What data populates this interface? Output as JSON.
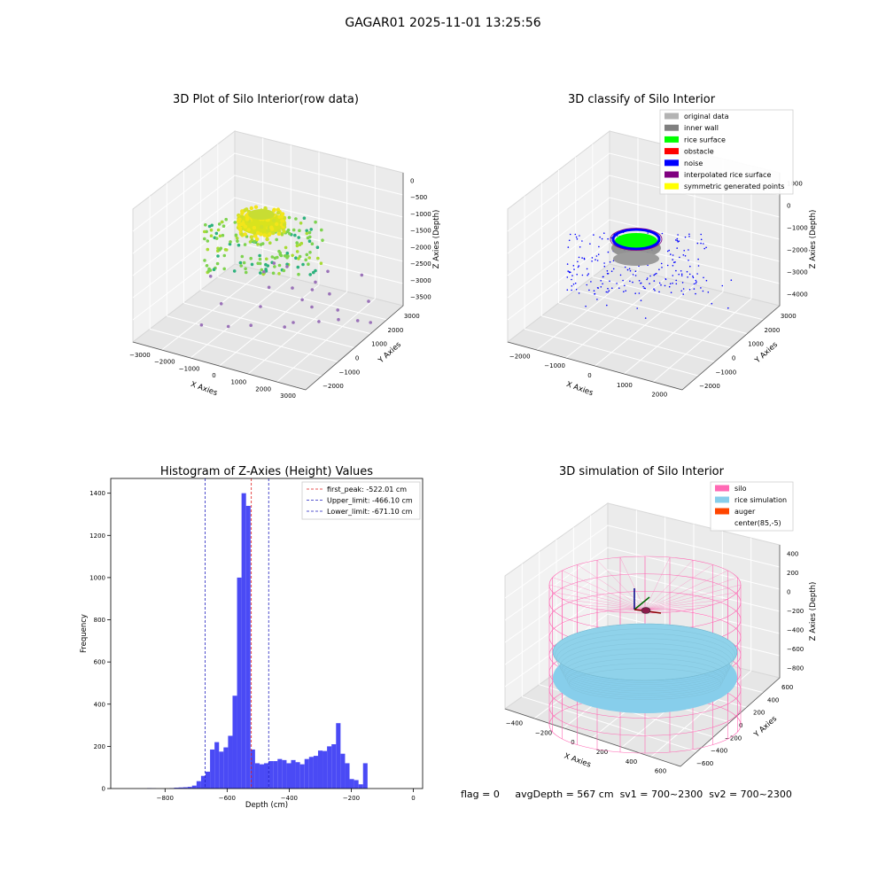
{
  "figure": {
    "suptitle": "GAGAR01 2025-11-01 13:25:56",
    "status_line": {
      "flag": "flag = 0",
      "avg_depth": "avgDepth = 567 cm",
      "sv1": "sv1 = 700~2300",
      "sv2": "sv2 = 700~2300"
    }
  },
  "chart_data": [
    {
      "type": "scatter",
      "projection": "3d",
      "title": "3D Plot of Silo Interior(row data)",
      "xlabel": "X Axies",
      "ylabel": "Y Axies",
      "zlabel": "Z Axies (Depth)",
      "xticks": [
        "−3000",
        "−2000",
        "−1000",
        "0",
        "1000",
        "2000",
        "3000"
      ],
      "yticks": [
        "−2000",
        "−1000",
        "0",
        "1000",
        "2000",
        "3000"
      ],
      "zticks": [
        "0",
        "−500",
        "−1000",
        "−1500",
        "−2000",
        "−2500",
        "−3000",
        "−3500"
      ],
      "xlim": [
        -3000,
        3000
      ],
      "ylim": [
        -2000,
        3000
      ],
      "zlim": [
        -3500,
        0
      ],
      "colormap": "viridis",
      "grid": true
    },
    {
      "type": "scatter",
      "projection": "3d",
      "title": "3D classify of Silo Interior",
      "xlabel": "X Axies",
      "ylabel": "Y Axies",
      "zlabel": "Z Axies (Depth)",
      "xticks": [
        "−2000",
        "−1000",
        "0",
        "1000",
        "2000"
      ],
      "yticks": [
        "−2000",
        "−1000",
        "0",
        "1000",
        "2000",
        "3000"
      ],
      "zticks": [
        "1000",
        "0",
        "−1000",
        "−2000",
        "−3000",
        "−4000"
      ],
      "xlim": [
        -2000,
        2000
      ],
      "ylim": [
        -2000,
        3000
      ],
      "zlim": [
        -4000,
        1000
      ],
      "legend_position": "top-right",
      "legend": [
        {
          "label": "original data",
          "color": "#b3b3b3"
        },
        {
          "label": "inner wall",
          "color": "#808080"
        },
        {
          "label": "rice surface",
          "color": "#00ff00"
        },
        {
          "label": "obstacle",
          "color": "#ff0000"
        },
        {
          "label": "noise",
          "color": "#0000ff"
        },
        {
          "label": "interpolated rice surface",
          "color": "#800080"
        },
        {
          "label": "symmetric generated points",
          "color": "#ffff00"
        }
      ],
      "grid": true
    },
    {
      "type": "bar",
      "subtype": "histogram",
      "title": "Histogram of Z-Axies (Height) Values",
      "xlabel": "Depth (cm)",
      "ylabel": "Frequency",
      "xlim": [
        -975,
        30
      ],
      "ylim": [
        0,
        1470
      ],
      "xticks": [
        -800,
        -600,
        -400,
        -200,
        0
      ],
      "yticks": [
        0,
        200,
        400,
        600,
        800,
        1000,
        1200,
        1400
      ],
      "bar_color": "#4a4af5",
      "bin_width": 14.5,
      "bin_start": -945,
      "values": [
        0,
        0,
        0,
        0,
        0,
        0,
        2,
        1,
        0,
        0,
        0,
        2,
        4,
        5,
        6,
        8,
        14,
        35,
        60,
        80,
        185,
        220,
        175,
        195,
        250,
        440,
        1000,
        1400,
        1340,
        185,
        120,
        115,
        120,
        130,
        130,
        140,
        135,
        120,
        135,
        125,
        115,
        140,
        150,
        155,
        180,
        178,
        200,
        210,
        310,
        165,
        120,
        45,
        40,
        20,
        120
      ],
      "reference_lines": [
        {
          "label": "first_peak: -522.01 cm",
          "x": -522.01,
          "color": "#e02020"
        },
        {
          "label": "Upper_limit: -466.10 cm",
          "x": -466.1,
          "color": "#2020c0"
        },
        {
          "label": "Lower_limit: -671.10 cm",
          "x": -671.1,
          "color": "#2020c0"
        }
      ],
      "legend_position": "top-right",
      "grid": false
    },
    {
      "type": "scatter",
      "projection": "3d",
      "title": "3D simulation of Silo Interior",
      "xlabel": "X Axies",
      "ylabel": "Y Axies",
      "zlabel": "Z Axies (Depth)",
      "xticks": [
        "−400",
        "−200",
        "0",
        "200",
        "400",
        "600"
      ],
      "yticks": [
        "−600",
        "−400",
        "−200",
        "0",
        "200",
        "400",
        "600"
      ],
      "zticks": [
        "400",
        "200",
        "0",
        "−200",
        "−400",
        "−600",
        "−800"
      ],
      "xlim": [
        -500,
        700
      ],
      "ylim": [
        -700,
        700
      ],
      "zlim": [
        -900,
        450
      ],
      "legend_position": "top-right",
      "legend": [
        {
          "label": "silo",
          "color": "#ff69b4"
        },
        {
          "label": "rice simulation",
          "color": "#87ceeb"
        },
        {
          "label": "auger",
          "color": "#ff4500"
        },
        {
          "label": "center(85,-5)",
          "color": "none"
        }
      ],
      "grid": true
    }
  ]
}
